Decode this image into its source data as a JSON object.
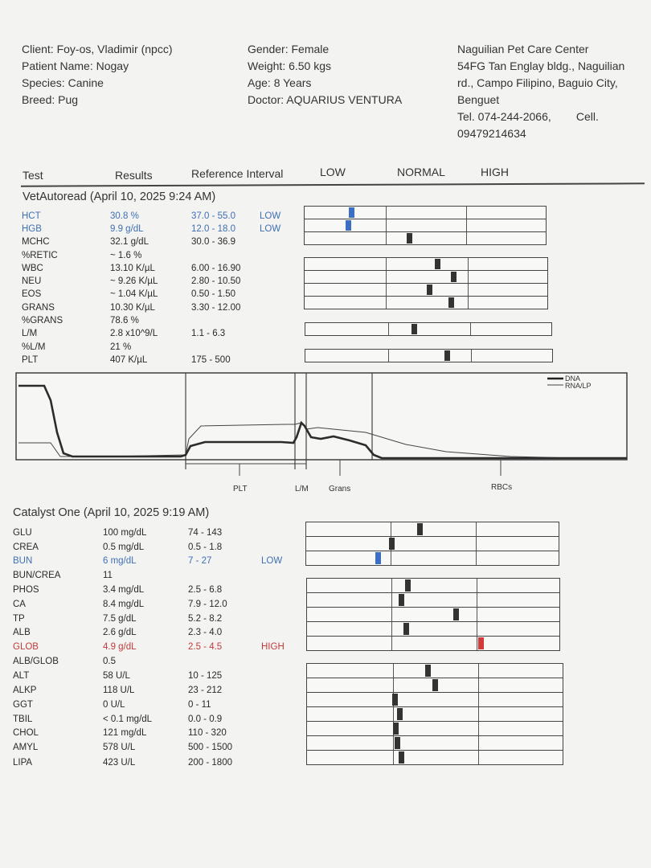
{
  "header": {
    "client": "Client: Foy-os, Vladimir (npcc)",
    "patient": "Patient Name: Nogay",
    "species": "Species: Canine",
    "breed": "Breed: Pug",
    "gender": "Gender: Female",
    "weight": "Weight: 6.50 kgs",
    "age": "Age: 8 Years",
    "doctor": "Doctor: AQUARIUS VENTURA",
    "clinic": [
      "Naguilian Pet Care Center",
      "54FG Tan Englay bldg., Naguilian",
      "rd., Campo Filipino, Baguio City,",
      "Benguet",
      "Tel. 074-244-2066,        Cell.",
      "09479214634"
    ]
  },
  "columns": {
    "test": "Test",
    "results": "Results",
    "ref": "Reference Interval",
    "low": "LOW",
    "normal": "NORMAL",
    "high": "HIGH"
  },
  "vetautoread": {
    "title": "VetAutoread (April 10, 2025 9:24 AM)",
    "rows": [
      {
        "test": "HCT",
        "result": "30.8 %",
        "ref": "37.0 - 55.0",
        "flag": "LOW",
        "status": "low",
        "marker": 0.59
      },
      {
        "test": "HGB",
        "result": "9.9 g/dL",
        "ref": "12.0 - 18.0",
        "flag": "LOW",
        "status": "low",
        "marker": 0.55
      },
      {
        "test": "MCHC",
        "result": "32.1 g/dL",
        "ref": "30.0 - 36.9",
        "flag": "",
        "status": "normal",
        "marker": 1.3
      },
      {
        "test": "%RETIC",
        "result": "~ 1.6 %",
        "ref": "",
        "flag": "",
        "status": "normal",
        "marker": null
      },
      {
        "test": "WBC",
        "result": "13.10 K/µL",
        "ref": "6.00 - 16.90",
        "flag": "",
        "status": "normal",
        "marker": 1.64
      },
      {
        "test": "NEU",
        "result": "~ 9.26 K/µL",
        "ref": "2.80 - 10.50",
        "flag": "",
        "status": "normal",
        "marker": 1.84
      },
      {
        "test": "EOS",
        "result": "~ 1.04 K/µL",
        "ref": "0.50 - 1.50",
        "flag": "",
        "status": "normal",
        "marker": 1.54
      },
      {
        "test": "GRANS",
        "result": "10.30 K/µL",
        "ref": "3.30 - 12.00",
        "flag": "",
        "status": "normal",
        "marker": 1.81
      },
      {
        "test": "%GRANS",
        "result": "78.6 %",
        "ref": "",
        "flag": "",
        "status": "normal",
        "marker": null
      },
      {
        "test": "L/M",
        "result": "2.8 x10^9/L",
        "ref": "1.1 - 6.3",
        "flag": "",
        "status": "normal",
        "marker": 1.32
      },
      {
        "test": "%L/M",
        "result": "21 %",
        "ref": "",
        "flag": "",
        "status": "normal",
        "marker": null
      },
      {
        "test": "PLT",
        "result": "407 K/µL",
        "ref": "175 - 500",
        "flag": "",
        "status": "normal",
        "marker": 1.72
      }
    ]
  },
  "histogram": {
    "legend": [
      "DNA",
      "RNA/LP"
    ],
    "labels": {
      "plt": "PLT",
      "lm": "L/M",
      "grans": "Grans",
      "rbcs": "RBCs"
    }
  },
  "catalyst": {
    "title": "Catalyst One (April 10, 2025 9:19 AM)",
    "rows": [
      {
        "test": "GLU",
        "result": "100 mg/dL",
        "ref": "74 - 143",
        "flag": "",
        "status": "normal",
        "marker": 1.35
      },
      {
        "test": "CREA",
        "result": "0.5 mg/dL",
        "ref": "0.5 - 1.8",
        "flag": "",
        "status": "normal",
        "marker": 1.02
      },
      {
        "test": "BUN",
        "result": "6 mg/dL",
        "ref": "7 - 27",
        "flag": "LOW",
        "status": "low",
        "marker": 0.85
      },
      {
        "test": "BUN/CREA",
        "result": "11",
        "ref": "",
        "flag": "",
        "status": "normal",
        "marker": null
      },
      {
        "test": "PHOS",
        "result": "3.4 mg/dL",
        "ref": "2.5 - 6.8",
        "flag": "",
        "status": "normal",
        "marker": 1.2
      },
      {
        "test": "CA",
        "result": "8.4 mg/dL",
        "ref": "7.9 - 12.0",
        "flag": "",
        "status": "normal",
        "marker": 1.12
      },
      {
        "test": "TP",
        "result": "7.5 g/dL",
        "ref": "5.2 - 8.2",
        "flag": "",
        "status": "normal",
        "marker": 1.77
      },
      {
        "test": "ALB",
        "result": "2.6 g/dL",
        "ref": "2.3 - 4.0",
        "flag": "",
        "status": "normal",
        "marker": 1.18
      },
      {
        "test": "GLOB",
        "result": "4.9 g/dL",
        "ref": "2.5 - 4.5",
        "flag": "HIGH",
        "status": "high",
        "marker": 2.06
      },
      {
        "test": "ALB/GLOB",
        "result": "0.5",
        "ref": "",
        "flag": "",
        "status": "normal",
        "marker": null
      },
      {
        "test": "ALT",
        "result": "58 U/L",
        "ref": "10 - 125",
        "flag": "",
        "status": "normal",
        "marker": 1.42
      },
      {
        "test": "ALKP",
        "result": "118 U/L",
        "ref": "23 - 212",
        "flag": "",
        "status": "normal",
        "marker": 1.5
      },
      {
        "test": "GGT",
        "result": "0 U/L",
        "ref": "0 - 11",
        "flag": "",
        "status": "normal",
        "marker": 1.03
      },
      {
        "test": "TBIL",
        "result": "< 0.1 mg/dL",
        "ref": "0.0 - 0.9",
        "flag": "",
        "status": "normal",
        "marker": 1.09
      },
      {
        "test": "CHOL",
        "result": "121 mg/dL",
        "ref": "110 - 320",
        "flag": "",
        "status": "normal",
        "marker": 1.04
      },
      {
        "test": "AMYL",
        "result": "578 U/L",
        "ref": "500 - 1500",
        "flag": "",
        "status": "normal",
        "marker": 1.06
      },
      {
        "test": "LIPA",
        "result": "423 U/L",
        "ref": "200 - 1800",
        "flag": "",
        "status": "normal",
        "marker": 1.11
      }
    ]
  },
  "colors": {
    "low": "#3f6fb5",
    "high": "#c23b3b",
    "marker": "#333333"
  }
}
